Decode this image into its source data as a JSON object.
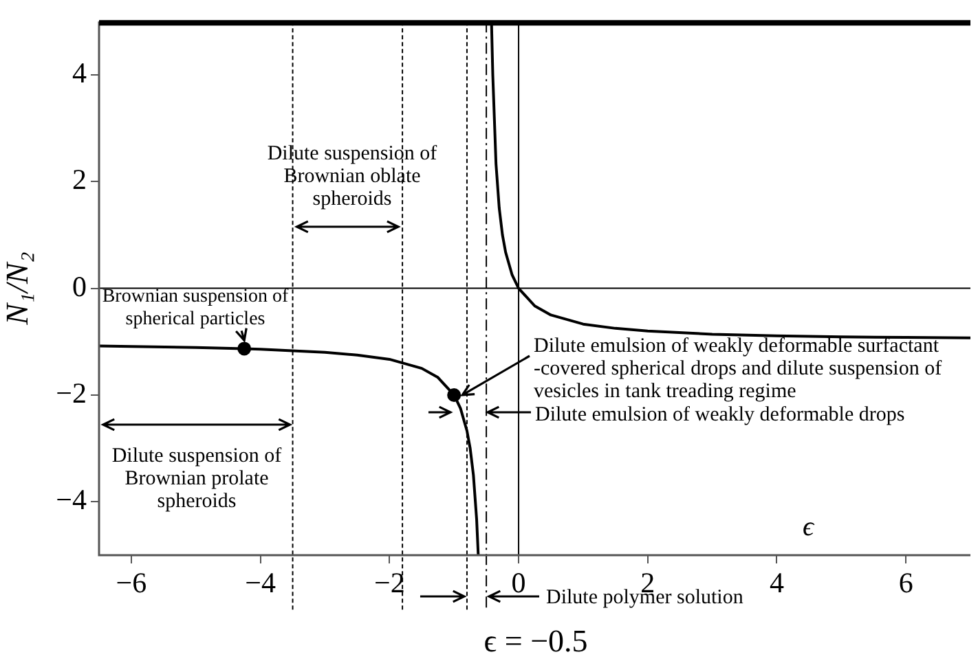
{
  "chart_data": {
    "type": "line",
    "xlabel": "ϵ",
    "ylabel": "N₁/N₂",
    "xlim": [
      -6.5,
      7
    ],
    "ylim": [
      -5,
      5
    ],
    "xticks": [
      -6,
      -4,
      -2,
      0,
      2,
      4,
      6
    ],
    "yticks": [
      -4,
      -2,
      0,
      2,
      4
    ],
    "line_style": "solid",
    "series": [
      {
        "color": "#000000",
        "marker": "none",
        "x": [
          -6.5,
          -6,
          -5,
          -4.25,
          -4,
          -3,
          -2.5,
          -2,
          -1.5,
          -1.25,
          -1,
          -0.9,
          -0.8,
          -0.75,
          -0.7,
          -0.65,
          -0.625,
          -0.5,
          -0.42,
          -0.4,
          -0.35,
          -0.3,
          -0.25,
          -0.2,
          -0.1,
          0,
          0.25,
          0.5,
          1,
          1.5,
          2,
          3,
          4,
          5,
          6,
          7
        ],
        "values": [
          -1.08,
          -1.09,
          -1.11,
          -1.13,
          -1.14,
          -1.2,
          -1.25,
          -1.33,
          -1.5,
          -1.67,
          -2,
          -2.25,
          -2.67,
          -3,
          -3.5,
          -4.33,
          -5,
          null,
          5,
          4,
          2.33,
          1.5,
          1,
          0.67,
          0.25,
          0,
          -0.33,
          -0.5,
          -0.67,
          -0.75,
          -0.8,
          -0.86,
          -0.89,
          -0.91,
          -0.92,
          -0.93
        ]
      },
      {
        "type": "scatter",
        "color": "#000000",
        "marker": "circle",
        "x": [
          -4.25,
          -1
        ],
        "values": [
          -1.13,
          -2
        ]
      }
    ],
    "ref_lines": [
      {
        "axis": "x",
        "value": -3.5,
        "line_style": "dotted"
      },
      {
        "axis": "x",
        "value": -1.8,
        "line_style": "dotted"
      },
      {
        "axis": "x",
        "value": -0.8,
        "line_style": "dotted"
      },
      {
        "axis": "x",
        "value": -0.5,
        "label": "ϵ = −0.5",
        "line_style": "dashed"
      },
      {
        "axis": "x",
        "value": 0,
        "line_style": "solid"
      },
      {
        "axis": "y",
        "value": 0,
        "line_style": "solid"
      }
    ],
    "annotations": [
      "Dilute suspension of\nBrownian oblate\nspheroids",
      {
        "text": "Brownian suspension of\nspherical particles",
        "x": -4.25,
        "y": -1.13
      },
      "Dilute suspension of\nBrownian prolate\nspheroids",
      {
        "text": "Dilute emulsion of weakly deformable surfactant\n-covered spherical drops and dilute suspension of\nvesicles in tank treading regime",
        "x": -1,
        "y": -2
      },
      "Dilute emulsion of weakly deformable drops",
      "Dilute polymer solution"
    ]
  }
}
